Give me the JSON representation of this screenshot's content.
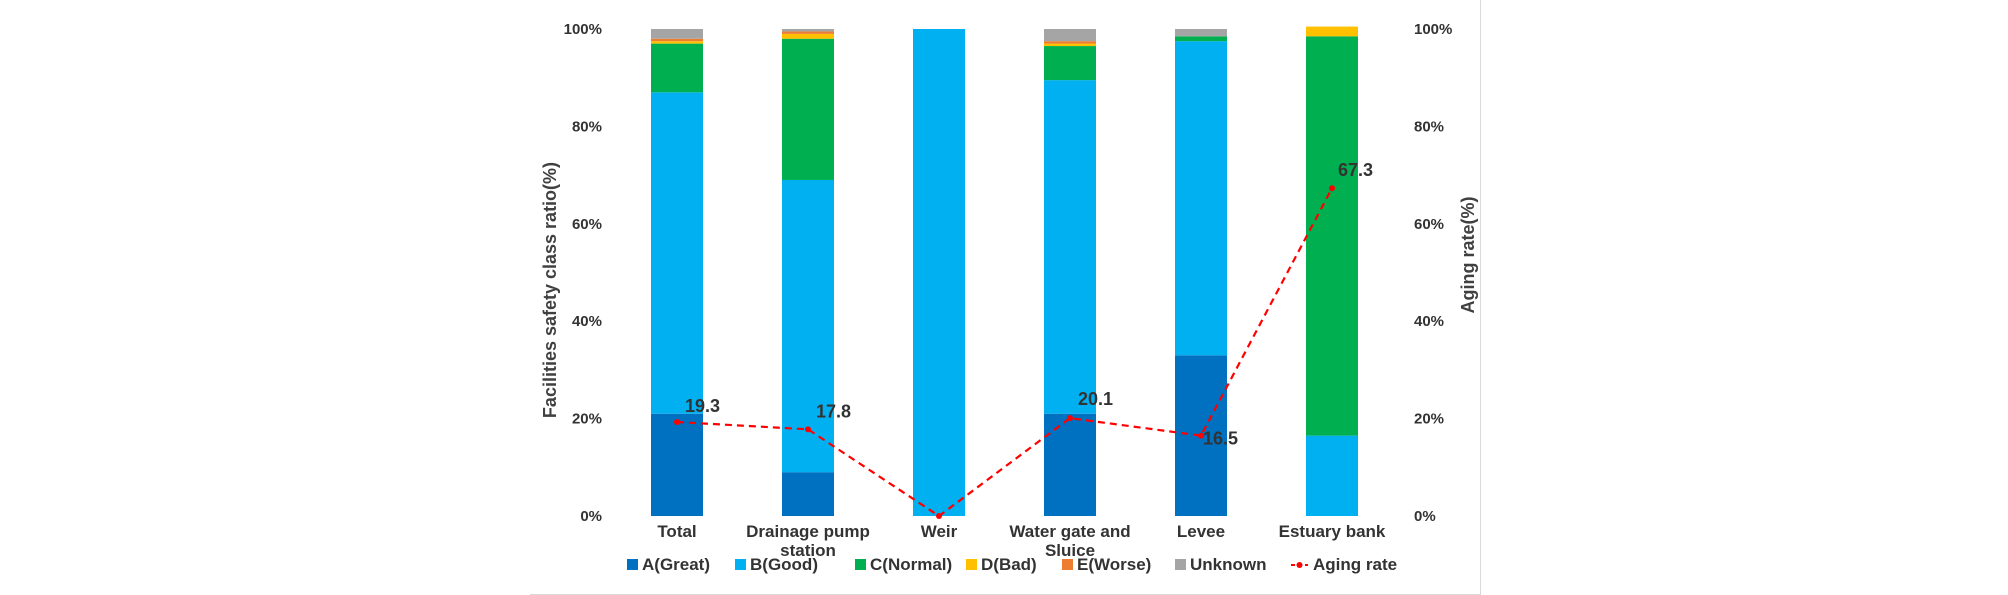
{
  "chart_data": {
    "type": "bar",
    "stacked": true,
    "percent": true,
    "categories": [
      "Total",
      "Drainage pump station",
      "Weir",
      "Water gate and Sluice",
      "Levee",
      "Estuary bank"
    ],
    "category_lines": [
      [
        "Total"
      ],
      [
        "Drainage pump",
        "station"
      ],
      [
        "Weir"
      ],
      [
        "Water gate and",
        "Sluice"
      ],
      [
        "Levee"
      ],
      [
        "Estuary bank"
      ]
    ],
    "series": [
      {
        "name": "A(Great)",
        "color": "#0070C0",
        "values": [
          21.0,
          9.0,
          0,
          21.0,
          33.0,
          0
        ]
      },
      {
        "name": "B(Good)",
        "color": "#00B0F0",
        "values": [
          66.0,
          60.0,
          100,
          68.5,
          64.5,
          16.5
        ]
      },
      {
        "name": "C(Normal)",
        "color": "#00B050",
        "values": [
          10.0,
          29.0,
          0,
          7.0,
          1.0,
          82.0
        ]
      },
      {
        "name": "D(Bad)",
        "color": "#FFC000",
        "values": [
          0.5,
          1.0,
          0,
          0.5,
          0,
          2.0
        ]
      },
      {
        "name": "E(Worse)",
        "color": "#ED7D31",
        "values": [
          0.5,
          0.5,
          0,
          0.5,
          0,
          0
        ]
      },
      {
        "name": "Unknown",
        "color": "#A5A5A5",
        "values": [
          2.0,
          0.5,
          0,
          2.5,
          1.5,
          0
        ]
      }
    ],
    "line_series": {
      "name": "Aging rate",
      "color": "#FF0000",
      "values": [
        19.3,
        17.8,
        0,
        20.1,
        16.5,
        67.3
      ],
      "labels": [
        "19.3",
        "17.8",
        "",
        "20.1",
        "16.5",
        "67.3"
      ]
    },
    "y_left": {
      "label": "Facilities safety class ratio(%)",
      "ylim": [
        0,
        100
      ],
      "ticks": [
        "0%",
        "20%",
        "40%",
        "60%",
        "80%",
        "100%"
      ]
    },
    "y_right": {
      "label": "Aging rate(%)",
      "ylim": [
        0,
        100
      ],
      "ticks": [
        "0%",
        "20%",
        "40%",
        "60%",
        "80%",
        "100%"
      ]
    },
    "legend_position": "bottom",
    "legend": [
      "A(Great)",
      "B(Good)",
      "C(Normal)",
      "D(Bad)",
      "E(Worse)",
      "Unknown",
      "Aging rate"
    ]
  }
}
